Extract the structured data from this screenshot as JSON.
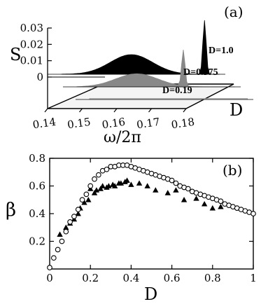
{
  "chart_data": [
    {
      "panel_label": "(a)",
      "type": "area",
      "x": {
        "label": "ω/2π",
        "ticks": [
          0.14,
          0.15,
          0.16,
          0.17,
          0.18
        ],
        "range": [
          0.14,
          0.18
        ]
      },
      "y": {
        "label": "S",
        "ticks": [
          0,
          0.01,
          0.02,
          0.03
        ],
        "tick_labels": [
          "0",
          "0.01",
          "0.02",
          "0.03"
        ],
        "range": [
          0,
          0.03
        ]
      },
      "z": {
        "label": "D"
      },
      "series": [
        {
          "name": "D=1.0",
          "color": "#000000",
          "broad_peak": {
            "x": 0.161,
            "y": 0.012
          },
          "sharp_peak": {
            "x": 0.183,
            "y": 0.033
          }
        },
        {
          "name": "D=0.375",
          "color": "#888888",
          "broad_peak": {
            "x": 0.158,
            "y": 0.008
          },
          "sharp_peak": {
            "x": 0.172,
            "y": 0.022
          }
        },
        {
          "name": "D=0.19",
          "color": "#cccccc",
          "broad_peak": null,
          "sharp_peak": null
        }
      ]
    },
    {
      "panel_label": "(b)",
      "type": "scatter",
      "xlabel": "D",
      "ylabel": "β",
      "xlim": [
        0,
        1
      ],
      "ylim": [
        0,
        0.8
      ],
      "x_ticks": [
        0,
        0.2,
        0.4,
        0.6,
        0.8,
        1
      ],
      "x_tick_labels": [
        "0",
        "0.2",
        "0.4",
        "0.6",
        "0.8",
        "1"
      ],
      "y_ticks": [
        0.2,
        0.4,
        0.6,
        0.8
      ],
      "y_tick_labels": [
        "0.2",
        "0.4",
        "0.6",
        "0.8"
      ],
      "series": [
        {
          "marker": "circle-open",
          "x": [
            0.0,
            0.02,
            0.04,
            0.06,
            0.08,
            0.1,
            0.12,
            0.14,
            0.16,
            0.18,
            0.2,
            0.22,
            0.24,
            0.26,
            0.28,
            0.3,
            0.32,
            0.34,
            0.36,
            0.38,
            0.4,
            0.42,
            0.44,
            0.46,
            0.48,
            0.5,
            0.52,
            0.54,
            0.56,
            0.58,
            0.6,
            0.62,
            0.64,
            0.66,
            0.68,
            0.7,
            0.72,
            0.74,
            0.76,
            0.78,
            0.8,
            0.82,
            0.84,
            0.86,
            0.88,
            0.9,
            0.92,
            0.94,
            0.96,
            0.98,
            1.0
          ],
          "y": [
            0.01,
            0.08,
            0.14,
            0.2,
            0.27,
            0.34,
            0.38,
            0.43,
            0.5,
            0.54,
            0.6,
            0.65,
            0.68,
            0.71,
            0.72,
            0.74,
            0.74,
            0.75,
            0.75,
            0.75,
            0.74,
            0.73,
            0.72,
            0.71,
            0.7,
            0.69,
            0.68,
            0.67,
            0.66,
            0.65,
            0.64,
            0.62,
            0.6,
            0.59,
            0.58,
            0.56,
            0.55,
            0.54,
            0.53,
            0.52,
            0.51,
            0.5,
            0.49,
            0.47,
            0.46,
            0.45,
            0.44,
            0.43,
            0.42,
            0.41,
            0.4
          ]
        },
        {
          "marker": "triangle-filled",
          "x": [
            0.05,
            0.08,
            0.1,
            0.12,
            0.14,
            0.15,
            0.17,
            0.19,
            0.2,
            0.22,
            0.23,
            0.25,
            0.26,
            0.28,
            0.29,
            0.31,
            0.32,
            0.34,
            0.35,
            0.37,
            0.38,
            0.4,
            0.44,
            0.48,
            0.52,
            0.58,
            0.62,
            0.66,
            0.72,
            0.76,
            0.8,
            0.84
          ],
          "y": [
            0.25,
            0.3,
            0.33,
            0.36,
            0.4,
            0.44,
            0.48,
            0.5,
            0.58,
            0.55,
            0.57,
            0.58,
            0.6,
            0.59,
            0.6,
            0.61,
            0.6,
            0.62,
            0.62,
            0.63,
            0.64,
            0.61,
            0.62,
            0.6,
            0.57,
            0.55,
            0.57,
            0.5,
            0.51,
            0.47,
            0.44,
            0.45
          ]
        }
      ]
    }
  ]
}
